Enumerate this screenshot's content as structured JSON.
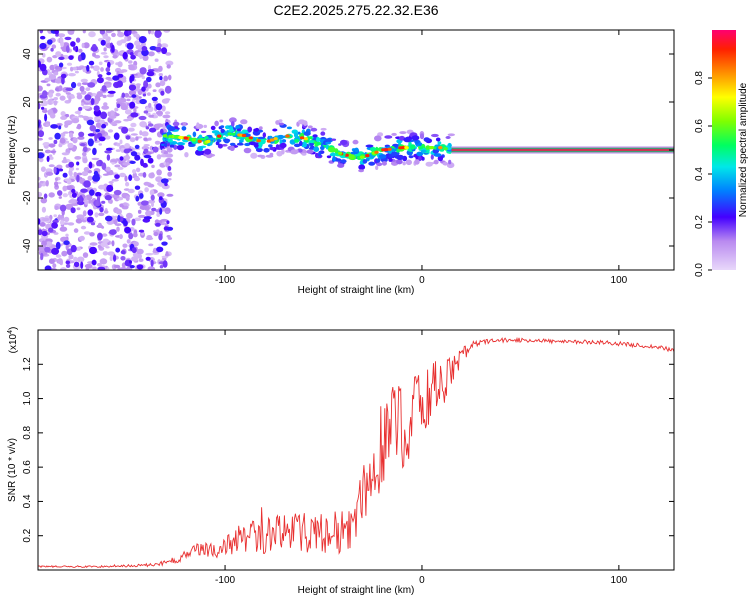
{
  "title": "C2E2.2025.275.22.32.E36",
  "colors": {
    "marker": "#e83030",
    "trace": "#e83030",
    "scatter": "#7b1ff0"
  },
  "colorbar": {
    "label": "Normalized spectral amplitude",
    "ticks": [
      "0.0",
      "0.2",
      "0.4",
      "0.6",
      "0.8"
    ],
    "tick_values": [
      0.0,
      0.2,
      0.4,
      0.6,
      0.8
    ],
    "range": [
      0,
      1
    ]
  },
  "chart_data": [
    {
      "type": "heatmap",
      "title": "C2E2.2025.275.22.32.E36",
      "xlabel": "Height of straight line (km)",
      "ylabel": "Frequency (Hz)",
      "xlim": [
        -195,
        128
      ],
      "ylim": [
        -50,
        50
      ],
      "x_ticks": [
        -100,
        0,
        100
      ],
      "x_tick_labels": [
        "-100",
        "0",
        "100"
      ],
      "y_ticks": [
        -40,
        -20,
        0,
        20,
        40
      ],
      "y_tick_labels": [
        "-40",
        "-20",
        "0",
        "20",
        "40"
      ],
      "signal_track": {
        "x": [
          -132,
          -120,
          -110,
          -100,
          -90,
          -80,
          -70,
          -60,
          -50,
          -40,
          -30,
          -20,
          -10,
          0,
          10,
          15
        ],
        "frequency": [
          6,
          5,
          3,
          7,
          6,
          3,
          6,
          5,
          2,
          -2,
          -3,
          0,
          1,
          1,
          1,
          0
        ]
      },
      "steady_line": {
        "x_start": 15,
        "x_end": 128,
        "frequency": 0
      },
      "noise_region": {
        "x_start": -195,
        "x_end": -128,
        "amplitude_range": [
          0.0,
          0.3
        ]
      }
    },
    {
      "type": "line",
      "xlabel": "Height of straight line (km)",
      "ylabel": "SNR (10 * v/v)",
      "y_scale_label": "(x10",
      "y_scale_exponent": "4",
      "xlim": [
        -195,
        128
      ],
      "ylim": [
        0,
        1.4
      ],
      "x_ticks": [
        -100,
        0,
        100
      ],
      "x_tick_labels": [
        "-100",
        "0",
        "100"
      ],
      "y_ticks": [
        0.2,
        0.4,
        0.6,
        0.8,
        1.0,
        1.2
      ],
      "y_tick_labels": [
        "0.2",
        "0.4",
        "0.6",
        "0.8",
        "1.0",
        "1.2"
      ],
      "series": [
        {
          "name": "SNR",
          "x": [
            -195,
            -160,
            -135,
            -125,
            -115,
            -105,
            -95,
            -85,
            -75,
            -65,
            -55,
            -45,
            -35,
            -30,
            -25,
            -20,
            -15,
            -10,
            -5,
            0,
            5,
            10,
            15,
            20,
            25,
            30,
            40,
            50,
            60,
            70,
            80,
            90,
            100,
            110,
            120,
            128
          ],
          "y": [
            0.02,
            0.02,
            0.03,
            0.06,
            0.11,
            0.13,
            0.16,
            0.19,
            0.21,
            0.22,
            0.21,
            0.22,
            0.23,
            0.45,
            0.55,
            0.75,
            0.85,
            0.82,
            0.9,
            1.0,
            1.05,
            1.08,
            1.15,
            1.25,
            1.3,
            1.33,
            1.34,
            1.34,
            1.34,
            1.33,
            1.33,
            1.33,
            1.32,
            1.31,
            1.3,
            1.28
          ],
          "amp": [
            0.005,
            0.005,
            0.01,
            0.02,
            0.04,
            0.06,
            0.08,
            0.1,
            0.11,
            0.12,
            0.12,
            0.13,
            0.13,
            0.15,
            0.2,
            0.25,
            0.28,
            0.25,
            0.22,
            0.2,
            0.18,
            0.15,
            0.1,
            0.05,
            0.03,
            0.015,
            0.012,
            0.012,
            0.012,
            0.012,
            0.012,
            0.012,
            0.012,
            0.012,
            0.012,
            0.012
          ]
        }
      ]
    }
  ]
}
